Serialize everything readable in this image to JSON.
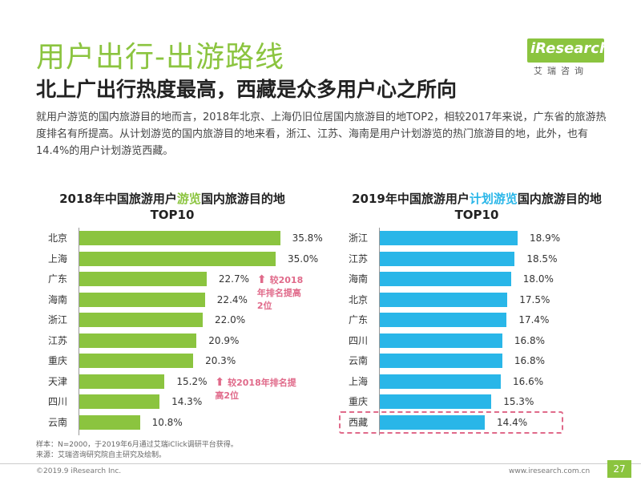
{
  "header": {
    "title": "用户出行-出游路线",
    "subtitle": "北上广出行热度最高，西藏是众多用户心之所向",
    "logo_text": "iResearch",
    "logo_sub": "艾瑞咨询"
  },
  "intro": "就用户游览的国内旅游目的地而言，2018年北京、上海仍旧位居国内旅游目的地TOP2，相较2017年来说，广东省的旅游热度排名有所提高。从计划游览的国内旅游目的地来看，浙江、江苏、海南是用户计划游览的热门旅游目的地，此外，也有14.4%的用户计划游览西藏。",
  "chart_data": [
    {
      "type": "bar",
      "orientation": "horizontal",
      "title_before": "2018年中国旅游用户",
      "title_highlight": "游览",
      "title_after": "国内旅游目的地",
      "title_line2": "TOP10",
      "categories": [
        "北京",
        "上海",
        "广东",
        "海南",
        "浙江",
        "江苏",
        "重庆",
        "天津",
        "四川",
        "云南"
      ],
      "values": [
        35.8,
        35.0,
        22.7,
        22.4,
        22.0,
        20.9,
        20.3,
        15.2,
        14.3,
        10.8
      ],
      "labels": [
        "35.8%",
        "35.0%",
        "22.7%",
        "22.4%",
        "22.0%",
        "20.9%",
        "20.3%",
        "15.2%",
        "14.3%",
        "10.8%"
      ],
      "color": "#8bc43f",
      "annotations": [
        {
          "index": 2,
          "text": "较2018年排名提高2位",
          "arrow": "⬆"
        },
        {
          "index": 7,
          "text": "较2018年排名提高2位",
          "arrow": "⬆"
        }
      ]
    },
    {
      "type": "bar",
      "orientation": "horizontal",
      "title_before": "2019年中国旅游用户",
      "title_highlight": "计划游览",
      "title_after": "国内旅游目的地",
      "title_line2": "TOP10",
      "categories": [
        "浙江",
        "江苏",
        "海南",
        "北京",
        "广东",
        "四川",
        "云南",
        "上海",
        "重庆",
        "西藏"
      ],
      "values": [
        18.9,
        18.5,
        18.0,
        17.5,
        17.4,
        16.8,
        16.8,
        16.6,
        15.3,
        14.4
      ],
      "labels": [
        "18.9%",
        "18.5%",
        "18.0%",
        "17.5%",
        "17.4%",
        "16.8%",
        "16.8%",
        "16.6%",
        "15.3%",
        "14.4%"
      ],
      "color": "#29b6e8",
      "highlight_index": 9
    }
  ],
  "notes": {
    "line1": "样本：N=2000，于2019年6月通过艾瑞iClick调研平台获得。",
    "line2": "来源：艾瑞咨询研究院自主研究及绘制。"
  },
  "footer": {
    "copyright": "©2019.9 iResearch Inc.",
    "website": "www.iresearch.com.cn",
    "page": "27"
  }
}
